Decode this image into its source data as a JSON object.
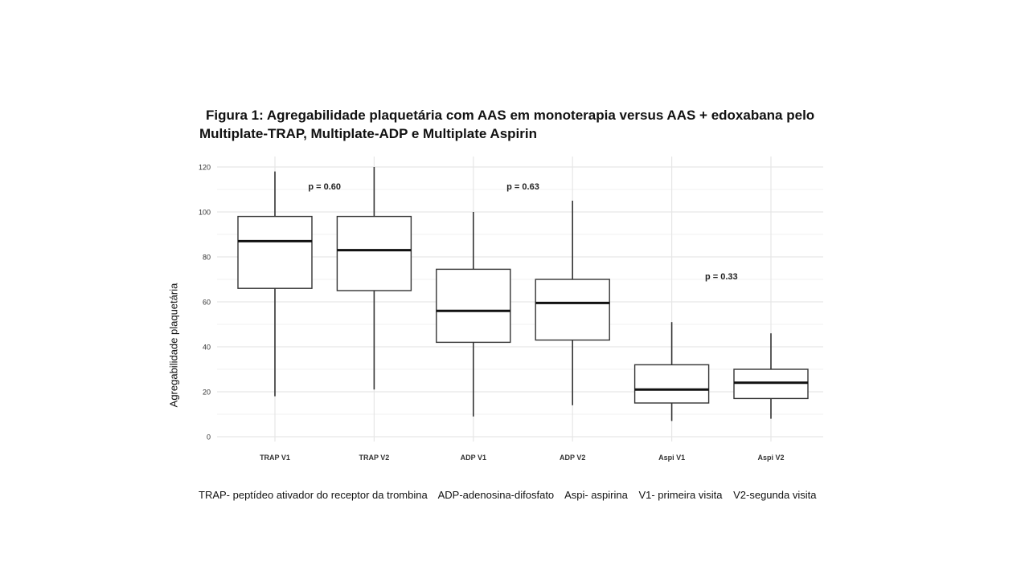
{
  "title_line1": "Figura 1: Agregabilidade plaquetária com AAS em monoterapia versus AAS + edoxabana pelo",
  "title_line2": "Multiplate-TRAP, Multiplate-ADP e Multiplate Aspirin",
  "footnote": [
    "TRAP- peptídeo ativador do receptor da trombina",
    "ADP-adenosina-difosfato",
    "Aspi- aspirina",
    "V1- primeira visita",
    "V2-segunda visita"
  ],
  "chart_data": {
    "type": "box",
    "title": "Figura 1: Agregabilidade plaquetária com AAS em monoterapia versus AAS + edoxabana pelo Multiplate-TRAP, Multiplate-ADP e Multiplate Aspirin",
    "xlabel": "",
    "ylabel": "Agregabilidade plaquetária",
    "ylim": [
      0,
      120
    ],
    "yticks": [
      0,
      20,
      40,
      60,
      80,
      100,
      120
    ],
    "grid": true,
    "categories": [
      "TRAP V1",
      "TRAP V2",
      "ADP V1",
      "ADP V2",
      "Aspi V1",
      "Aspi V2"
    ],
    "boxes": [
      {
        "min": 18,
        "q1": 66,
        "median": 87,
        "q3": 98,
        "max": 118
      },
      {
        "min": 21,
        "q1": 65,
        "median": 83,
        "q3": 98,
        "max": 120
      },
      {
        "min": 9,
        "q1": 42,
        "median": 56,
        "q3": 74.5,
        "max": 100
      },
      {
        "min": 14,
        "q1": 43,
        "median": 59.5,
        "q3": 70,
        "max": 105
      },
      {
        "min": 7,
        "q1": 15,
        "median": 21,
        "q3": 32,
        "max": 51
      },
      {
        "min": 8,
        "q1": 17,
        "median": 24,
        "q3": 30,
        "max": 46
      }
    ],
    "annotations": [
      {
        "text": "p = 0.60",
        "x": 1.5,
        "y": 110
      },
      {
        "text": "p = 0.63",
        "x": 3.5,
        "y": 110
      },
      {
        "text": "p = 0.33",
        "x": 5.5,
        "y": 70
      }
    ]
  }
}
